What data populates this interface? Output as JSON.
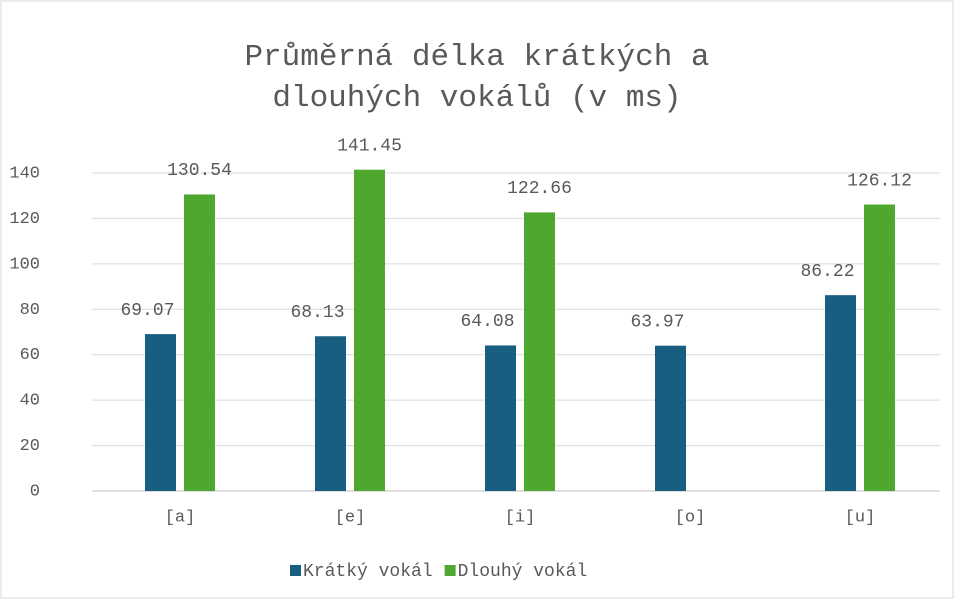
{
  "chart_data": {
    "type": "bar",
    "title": [
      "Průměrná délka krátkých a",
      "dlouhých vokálů (v ms)"
    ],
    "categories": [
      "[a]",
      "[e]",
      "[i]",
      "[o]",
      "[u]"
    ],
    "series": [
      {
        "name": "Krátký vokál",
        "color": "#175e80",
        "values": [
          69.07,
          68.13,
          64.08,
          63.97,
          86.22
        ]
      },
      {
        "name": "Dlouhý vokál",
        "color": "#4ea72e",
        "values": [
          130.54,
          141.45,
          122.66,
          null,
          126.12
        ]
      }
    ],
    "ylim": [
      0,
      140
    ],
    "yticks": [
      0,
      20,
      40,
      60,
      80,
      100,
      120,
      140
    ],
    "grid": true,
    "legend": "bottom"
  }
}
